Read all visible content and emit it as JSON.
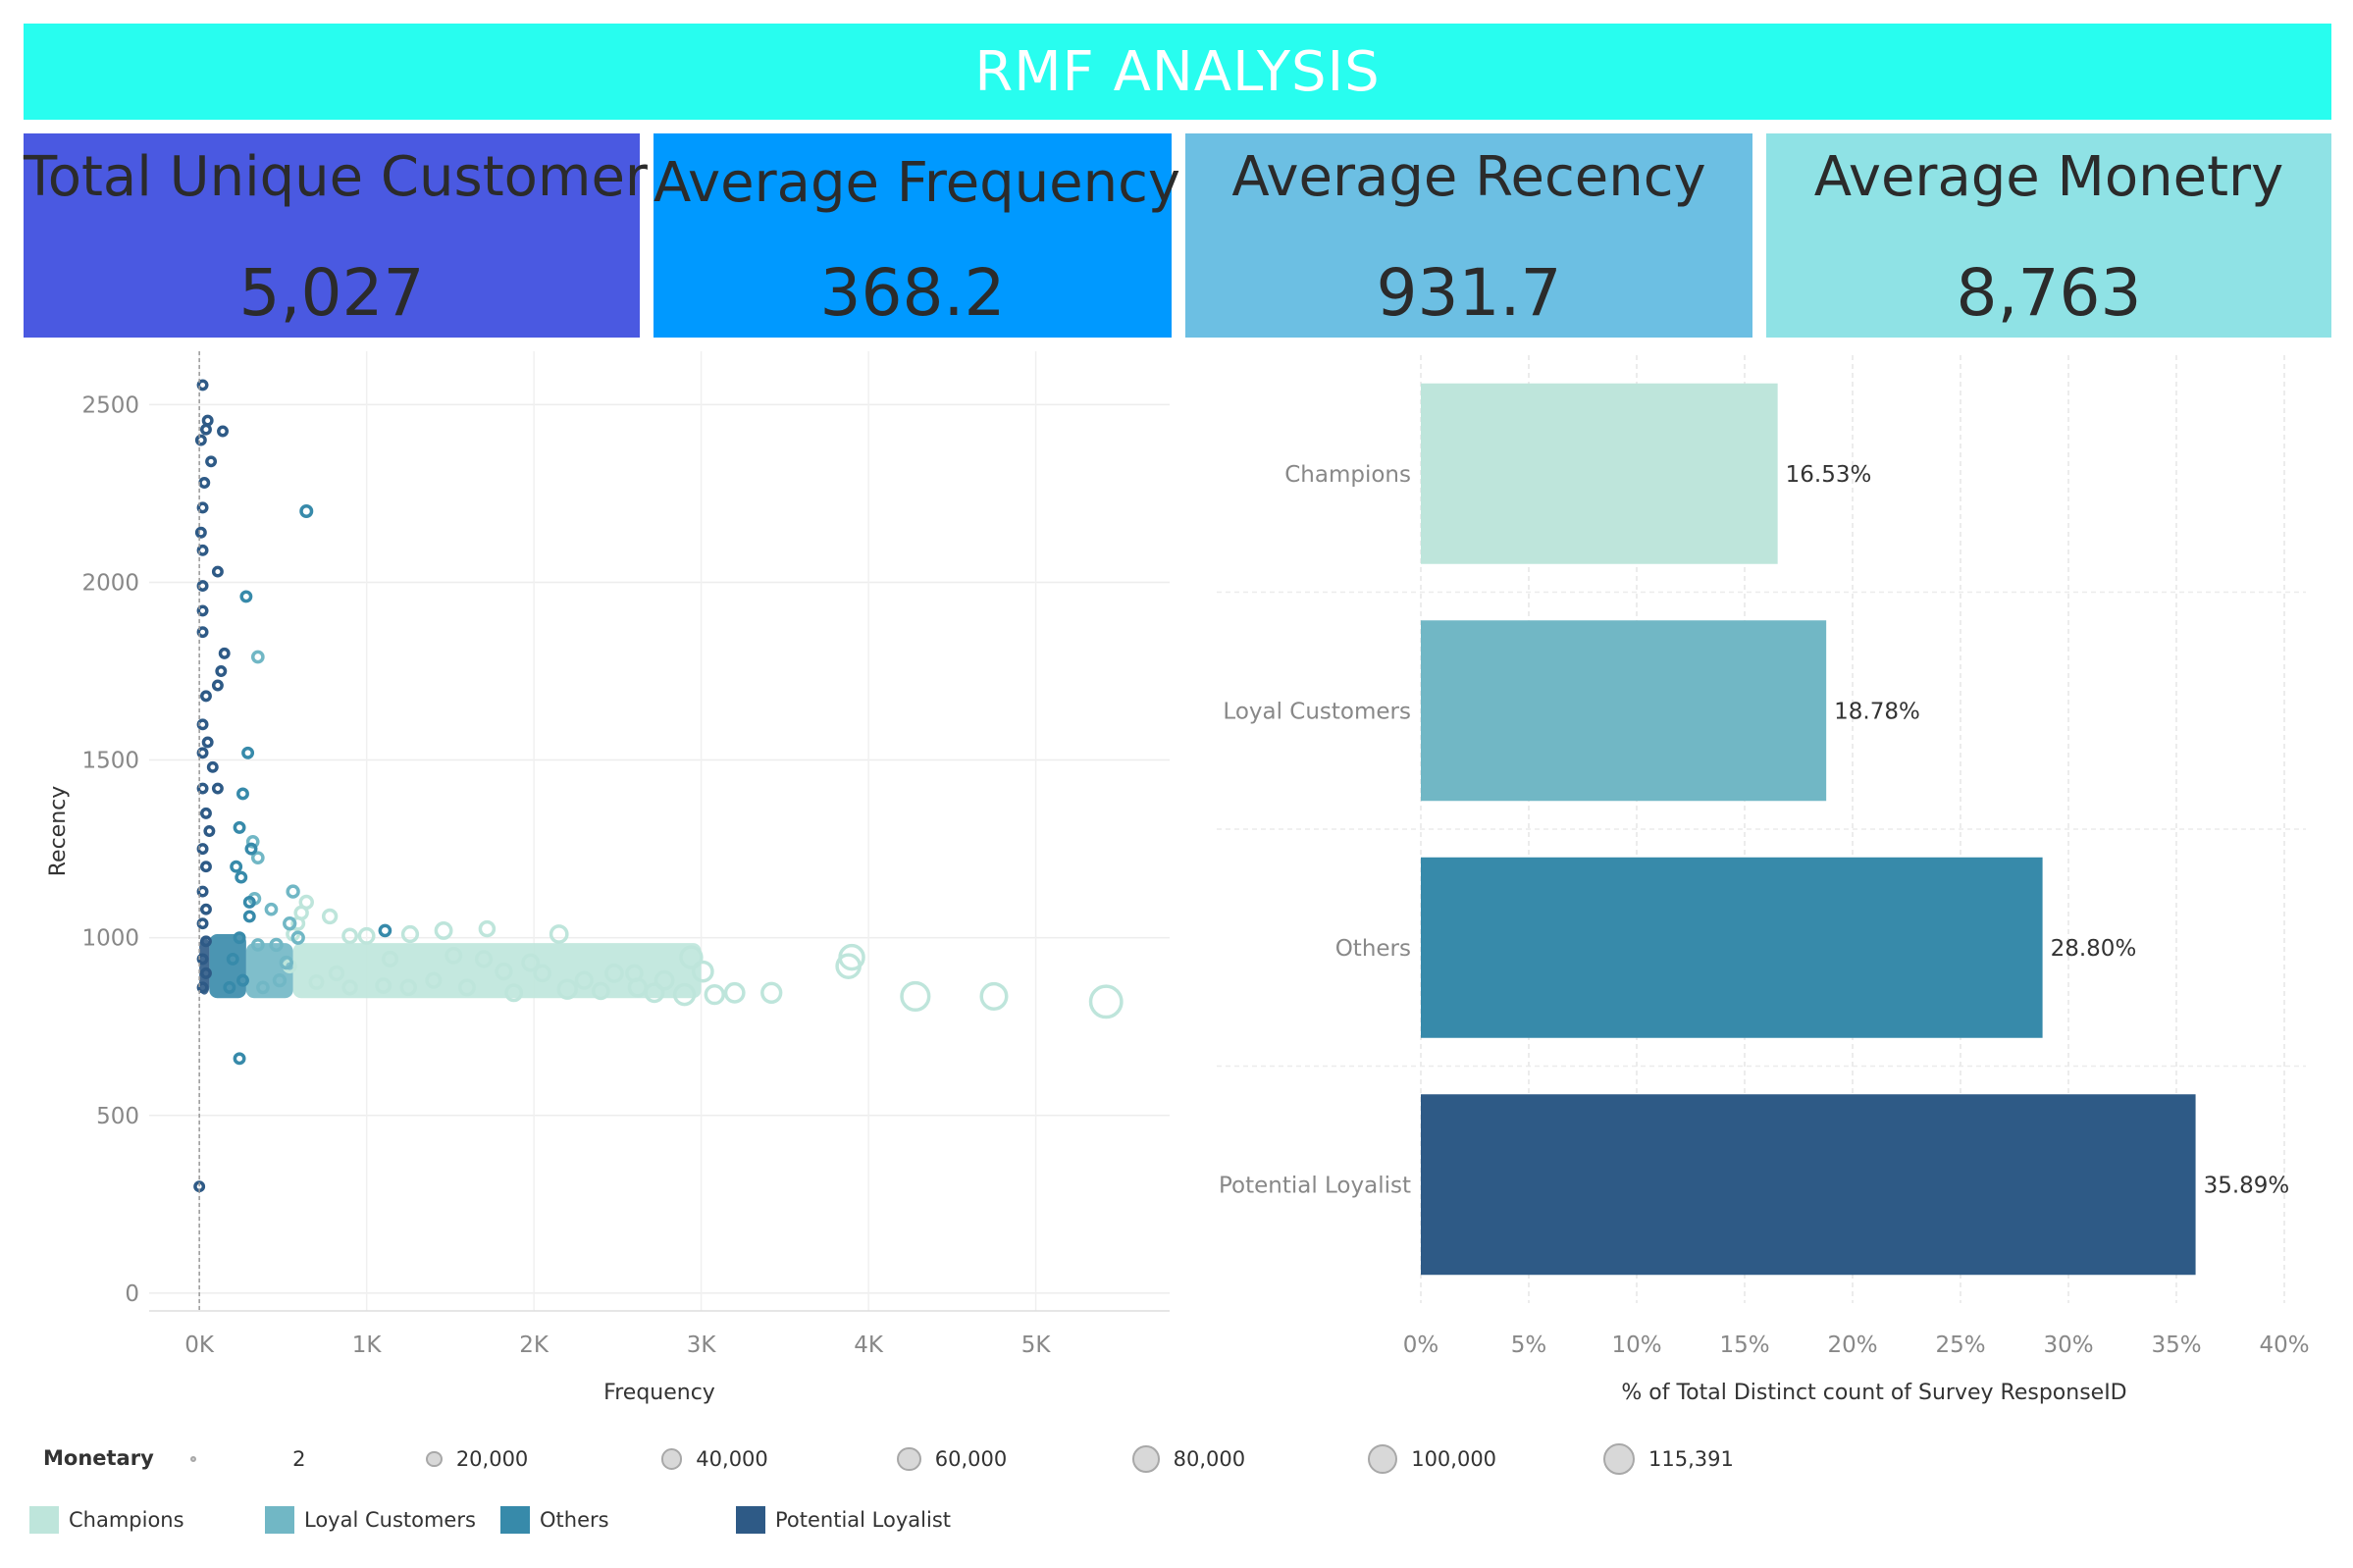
{
  "title": "RMF ANALYSIS",
  "kpis": [
    {
      "label": "Total Unique Customer",
      "value": "5,027",
      "bg": "#4a59e1"
    },
    {
      "label": "Average Frequency",
      "value": "368.2",
      "bg": "#0099ff"
    },
    {
      "label": "Average Recency",
      "value": "931.7",
      "bg": "#6cbfe3"
    },
    {
      "label": "Average Monetry",
      "value": "8,763",
      "bg": "#8fe2e5"
    }
  ],
  "colors": {
    "Champions": "#bee5db",
    "Loyal Customers": "#71b7c5",
    "Others": "#378aaa",
    "Potential Loyalist": "#2e5a86",
    "banner": "#28fdef"
  },
  "chart_data": [
    {
      "type": "scatter",
      "xlabel": "Frequency",
      "ylabel": "Recency",
      "xlim": [
        -300,
        5800
      ],
      "ylim": [
        -50,
        2650
      ],
      "x_ticks": [
        {
          "v": 0,
          "label": "0K"
        },
        {
          "v": 1000,
          "label": "1K"
        },
        {
          "v": 2000,
          "label": "2K"
        },
        {
          "v": 3000,
          "label": "3K"
        },
        {
          "v": 4000,
          "label": "4K"
        },
        {
          "v": 5000,
          "label": "5K"
        }
      ],
      "y_ticks": [
        0,
        500,
        1000,
        1500,
        2000,
        2500
      ],
      "size_field": "Monetary",
      "series": [
        {
          "name": "Champions",
          "points": [
            [
              5420,
              820,
              110000
            ],
            [
              4750,
              835,
              65000
            ],
            [
              4280,
              835,
              80000
            ],
            [
              3900,
              945,
              55000
            ],
            [
              3880,
              920,
              50000
            ],
            [
              3420,
              845,
              28000
            ],
            [
              3200,
              845,
              26000
            ],
            [
              3010,
              905,
              30000
            ],
            [
              2940,
              945,
              38000
            ],
            [
              2900,
              840,
              33000
            ],
            [
              2780,
              880,
              22000
            ],
            [
              2620,
              860,
              20000
            ],
            [
              2480,
              900,
              18000
            ],
            [
              2300,
              880,
              16000
            ],
            [
              2200,
              855,
              24000
            ],
            [
              2150,
              1010,
              18000
            ],
            [
              1980,
              930,
              15000
            ],
            [
              1820,
              905,
              13000
            ],
            [
              1720,
              1025,
              11000
            ],
            [
              1460,
              1020,
              15000
            ],
            [
              1260,
              1010,
              13000
            ],
            [
              1000,
              1005,
              12000
            ],
            [
              900,
              1005,
              9000
            ],
            [
              780,
              1060,
              8000
            ],
            [
              640,
              1100,
              6000
            ],
            [
              610,
              1070,
              6000
            ],
            [
              590,
              1040,
              5000
            ],
            [
              560,
              1010,
              5000
            ],
            [
              540,
              920,
              5000
            ],
            [
              2600,
              900,
              14000
            ],
            [
              2400,
              850,
              14000
            ],
            [
              1600,
              860,
              12000
            ],
            [
              1400,
              880,
              10000
            ],
            [
              1100,
              865,
              9000
            ],
            [
              900,
              860,
              8000
            ],
            [
              700,
              875,
              7000
            ],
            [
              2050,
              900,
              14000
            ],
            [
              3080,
              840,
              24000
            ],
            [
              2720,
              845,
              22000
            ],
            [
              1880,
              845,
              15000
            ],
            [
              1250,
              860,
              11000
            ],
            [
              820,
              900,
              8000
            ],
            [
              1140,
              940,
              10000
            ],
            [
              1520,
              950,
              12000
            ],
            [
              1700,
              940,
              13000
            ]
          ]
        },
        {
          "name": "Loyal Customers",
          "points": [
            [
              350,
              1790,
              3000
            ],
            [
              330,
              1110,
              3000
            ],
            [
              320,
              1270,
              3000
            ],
            [
              430,
              1080,
              3000
            ],
            [
              560,
              1130,
              4000
            ],
            [
              590,
              1000,
              4000
            ],
            [
              350,
              1225,
              3000
            ],
            [
              540,
              1040,
              4000
            ],
            [
              460,
              980,
              4000
            ],
            [
              350,
              980,
              3000
            ],
            [
              480,
              880,
              4000
            ],
            [
              380,
              860,
              3000
            ],
            [
              520,
              930,
              4000
            ]
          ]
        },
        {
          "name": "Others",
          "points": [
            [
              640,
              2200,
              3500
            ],
            [
              280,
              1960,
              2000
            ],
            [
              290,
              1520,
              2000
            ],
            [
              260,
              1405,
              2000
            ],
            [
              240,
              1310,
              2000
            ],
            [
              310,
              1250,
              2000
            ],
            [
              250,
              1170,
              2000
            ],
            [
              300,
              1060,
              2000
            ],
            [
              240,
              660,
              2000
            ],
            [
              1110,
              1020,
              3000
            ],
            [
              220,
              1200,
              2000
            ],
            [
              300,
              1100,
              2000
            ],
            [
              240,
              1000,
              2000
            ],
            [
              260,
              880,
              2000
            ],
            [
              200,
              940,
              2000
            ],
            [
              180,
              860,
              2000
            ]
          ]
        },
        {
          "name": "Potential Loyalist",
          "points": [
            [
              20,
              2555,
              1000
            ],
            [
              50,
              2455,
              1000
            ],
            [
              40,
              2430,
              1000
            ],
            [
              140,
              2425,
              1000
            ],
            [
              10,
              2400,
              1000
            ],
            [
              70,
              2340,
              1000
            ],
            [
              30,
              2280,
              1000
            ],
            [
              20,
              2210,
              1000
            ],
            [
              10,
              2140,
              1000
            ],
            [
              20,
              2090,
              1000
            ],
            [
              110,
              2030,
              1000
            ],
            [
              20,
              1990,
              1000
            ],
            [
              20,
              1920,
              1000
            ],
            [
              20,
              1860,
              1000
            ],
            [
              150,
              1800,
              1000
            ],
            [
              130,
              1750,
              1000
            ],
            [
              110,
              1710,
              1000
            ],
            [
              40,
              1680,
              1000
            ],
            [
              20,
              1600,
              1000
            ],
            [
              50,
              1550,
              1000
            ],
            [
              20,
              1520,
              1000
            ],
            [
              80,
              1480,
              1000
            ],
            [
              110,
              1420,
              1000
            ],
            [
              20,
              1420,
              1000
            ],
            [
              40,
              1350,
              1000
            ],
            [
              60,
              1300,
              1000
            ],
            [
              20,
              1250,
              1000
            ],
            [
              40,
              1200,
              1000
            ],
            [
              20,
              1130,
              1000
            ],
            [
              40,
              1080,
              1000
            ],
            [
              20,
              1040,
              1000
            ],
            [
              40,
              990,
              1000
            ],
            [
              20,
              940,
              1000
            ],
            [
              40,
              900,
              1000
            ],
            [
              20,
              860,
              1000
            ],
            [
              0,
              300,
              1000
            ]
          ]
        }
      ]
    },
    {
      "type": "bar",
      "orientation": "horizontal",
      "xlabel": "% of Total Distinct count of Survey ResponseID",
      "categories": [
        "Champions",
        "Loyal Customers",
        "Others",
        "Potential Loyalist"
      ],
      "values": [
        16.53,
        18.78,
        28.8,
        35.89
      ],
      "value_labels": [
        "16.53%",
        "18.78%",
        "28.80%",
        "35.89%"
      ],
      "xlim": [
        0,
        41
      ],
      "x_ticks": [
        0,
        5,
        10,
        15,
        20,
        25,
        30,
        35,
        40
      ],
      "x_tick_labels": [
        "0%",
        "5%",
        "10%",
        "15%",
        "20%",
        "25%",
        "30%",
        "35%",
        "40%"
      ]
    }
  ],
  "legend_size": {
    "title": "Monetary",
    "entries": [
      {
        "label": "2",
        "value": 2
      },
      {
        "label": "20,000",
        "value": 20000
      },
      {
        "label": "40,000",
        "value": 40000
      },
      {
        "label": "60,000",
        "value": 60000
      },
      {
        "label": "80,000",
        "value": 80000
      },
      {
        "label": "100,000",
        "value": 100000
      },
      {
        "label": "115,391",
        "value": 115391
      }
    ]
  },
  "legend_color": {
    "entries": [
      "Champions",
      "Loyal Customers",
      "Others",
      "Potential Loyalist"
    ]
  }
}
